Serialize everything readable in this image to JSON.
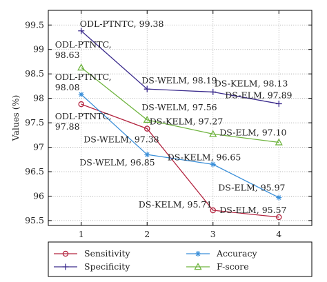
{
  "chart_data": {
    "type": "line",
    "xlabel": "",
    "ylabel": "Values (%)",
    "x": [
      1,
      2,
      3,
      4
    ],
    "xlim": [
      0.5,
      4.5
    ],
    "ylim": [
      95.4,
      99.8
    ],
    "x_ticks": [
      "1",
      "2",
      "3",
      "4"
    ],
    "y_ticks": [
      "95.5",
      "96",
      "96.5",
      "97",
      "97.5",
      "98",
      "98.5",
      "99",
      "99.5"
    ],
    "y_tick_values": [
      95.5,
      96,
      96.5,
      97,
      97.5,
      98,
      98.5,
      99,
      99.5
    ],
    "grid": true,
    "legend_position": "bottom",
    "series": [
      {
        "name": "Sensitivity",
        "color": "#b3243f",
        "marker": "circle",
        "values": [
          97.88,
          97.38,
          95.71,
          95.57
        ],
        "labels": [
          "ODL-PTNTC, 97.88",
          "DS-WELM, 97.38",
          "DS-KELM, 95.71",
          "DS-ELM, 95.57"
        ]
      },
      {
        "name": "Specificity",
        "color": "#3a2a8c",
        "marker": "plus",
        "values": [
          99.38,
          98.19,
          98.13,
          97.89
        ],
        "labels": [
          "ODL-PTNTC, 99.38",
          "DS-WELM, 98.19",
          "DS-KELM, 98.13",
          "DS-ELM, 97.89"
        ]
      },
      {
        "name": "Accuracy",
        "color": "#3a8fd9",
        "marker": "star",
        "values": [
          98.08,
          96.85,
          96.65,
          95.97
        ],
        "labels": [
          "ODL-PTNTC, 98.08",
          "DS-WELM, 96.85",
          "DS-KELM, 96.65",
          "DS-ELM, 95.97"
        ]
      },
      {
        "name": "F-score",
        "color": "#6fb43f",
        "marker": "triangle",
        "values": [
          98.63,
          97.56,
          97.27,
          97.1
        ],
        "labels": [
          "ODL-PTNTC, 98.63",
          "DS-WELM, 97.56",
          "DS-KELM, 97.27",
          "DS-ELM, 97.10"
        ]
      }
    ]
  }
}
